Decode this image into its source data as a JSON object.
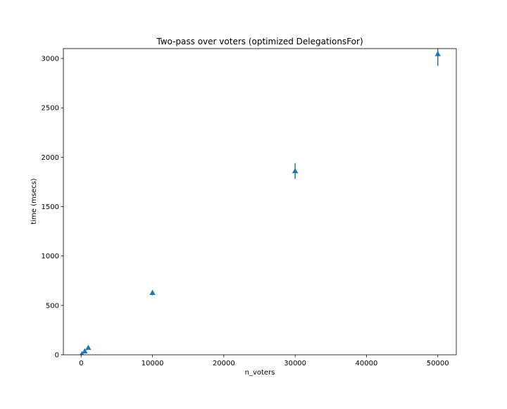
{
  "chart_data": {
    "type": "scatter",
    "title": "Two-pass over voters (optimized DelegationsFor)",
    "xlabel": "n_voters",
    "ylabel": "time (msecs)",
    "xlim": [
      -2495,
      52595
    ],
    "ylim": [
      0,
      3100
    ],
    "xticks": [
      0,
      10000,
      20000,
      30000,
      40000,
      50000
    ],
    "yticks": [
      0,
      500,
      1000,
      1500,
      2000,
      2500,
      3000
    ],
    "grid": false,
    "marker": "triangle-up",
    "color": "#1f77b4",
    "points": [
      {
        "x": 100,
        "y": 5,
        "err": 2
      },
      {
        "x": 500,
        "y": 35,
        "err": 5
      },
      {
        "x": 1000,
        "y": 70,
        "err": 5
      },
      {
        "x": 10000,
        "y": 627,
        "err": 25
      },
      {
        "x": 30000,
        "y": 1860,
        "err": 80
      },
      {
        "x": 50000,
        "y": 3045,
        "err": 120
      }
    ]
  }
}
